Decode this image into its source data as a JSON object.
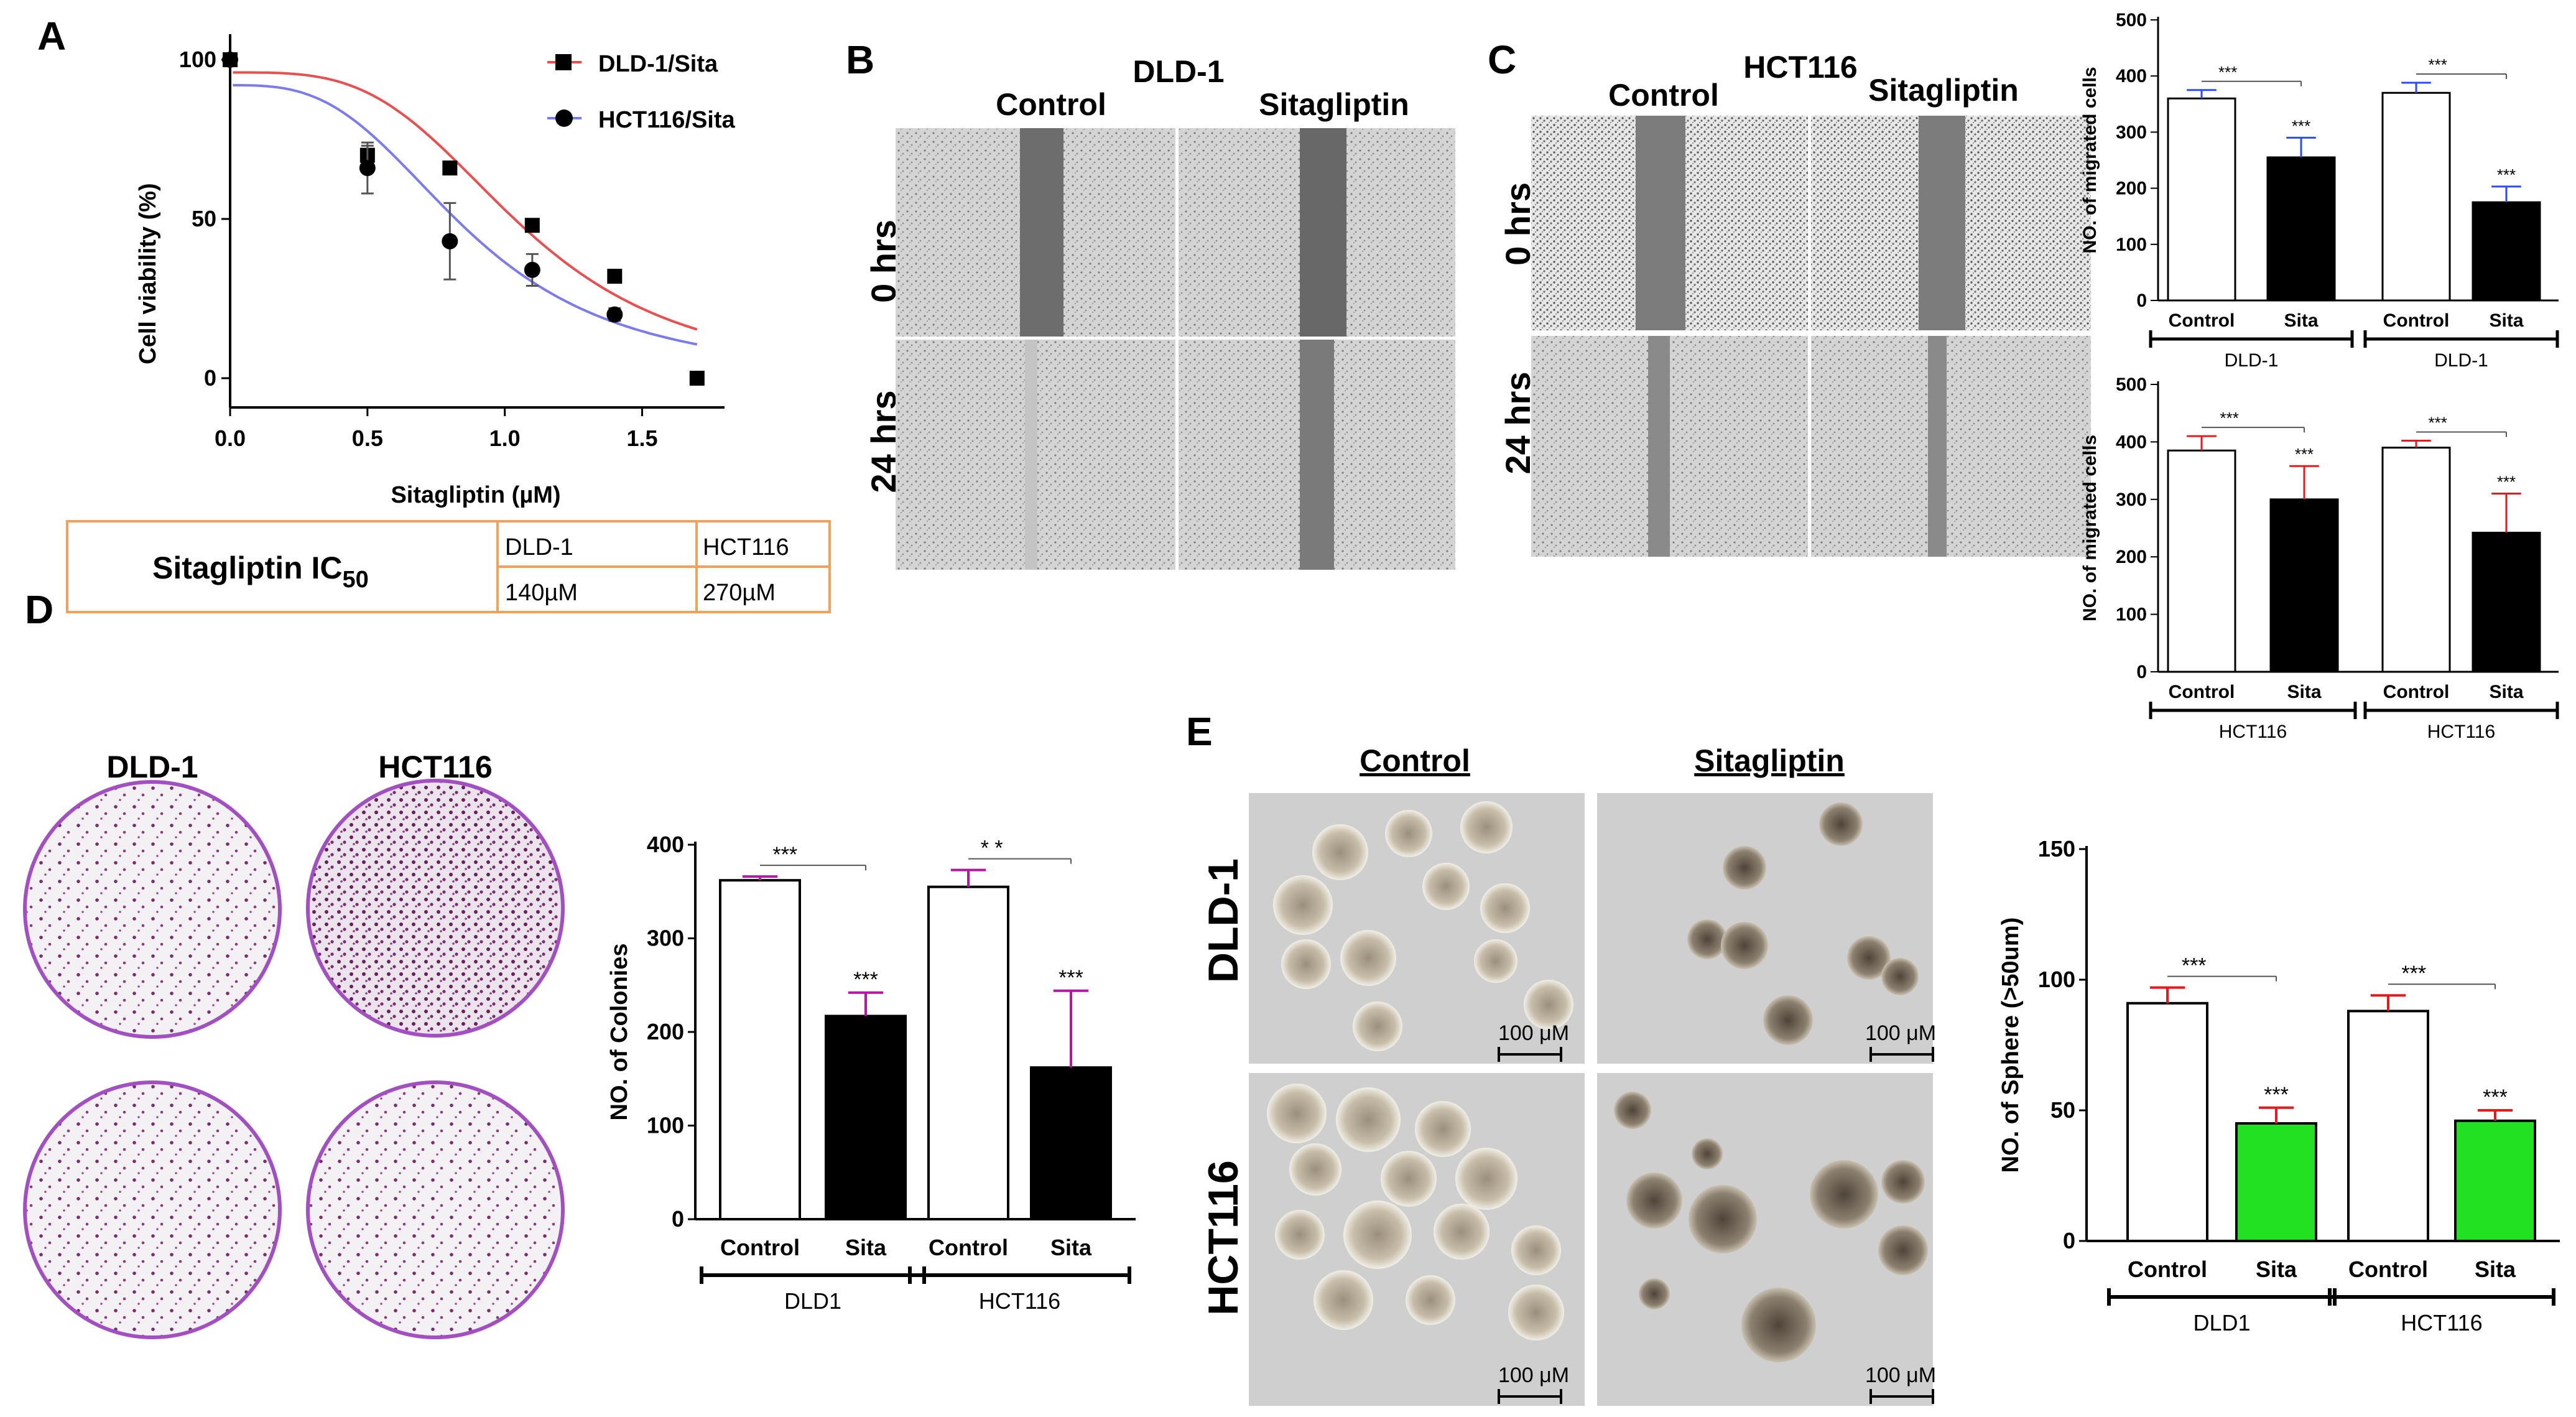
{
  "panels": {
    "A": "A",
    "B": "B",
    "C": "C",
    "D": "D",
    "E": "E"
  },
  "A": {
    "legend": [
      "DLD-1/Sita",
      "HCT116/Sita"
    ],
    "ylabel": "Cell viability (%)",
    "xlabel": "Sitagliptin (µM)",
    "yticks": [
      "0",
      "50",
      "100"
    ],
    "xticks": [
      "0.0",
      "0.5",
      "1.0",
      "1.5"
    ],
    "table": {
      "label": "Sitagliptin  IC",
      "label_sub": "50",
      "col1_head": "DLD-1",
      "col2_head": "HCT116",
      "col1_val": "140µM",
      "col2_val": "270µM"
    }
  },
  "B": {
    "title": "DLD-1",
    "col_control": "Control",
    "col_sita": "Sitagliptin",
    "row_0": "0 hrs",
    "row_24": "24 hrs"
  },
  "C": {
    "title": "HCT116",
    "col_control": "Control",
    "col_sita": "Sitagliptin",
    "row_0": "0 hrs",
    "row_24": "24 hrs"
  },
  "D": {
    "dld_label": "DLD-1",
    "hct_label": "HCT116"
  },
  "E": {
    "col_control": "Control",
    "col_sita": "Sitagliptin",
    "row_dld": "DLD-1",
    "row_hct": "HCT116",
    "scale": "100 μM"
  },
  "chart_data": [
    {
      "id": "A",
      "type": "scatter",
      "ylabel": "Cell viability (%)",
      "xlabel": "Sitagliptin (µM)",
      "xlim": [
        0,
        1.8
      ],
      "ylim": [
        0,
        100
      ],
      "series": [
        {
          "name": "DLD-1/Sita",
          "color": "#e8504f",
          "marker": "square",
          "x": [
            0.0,
            0.5,
            0.8,
            1.1,
            1.4,
            1.7
          ],
          "y": [
            100,
            70,
            66,
            48,
            32,
            0
          ],
          "err": [
            0,
            3,
            2,
            2,
            2,
            0
          ]
        },
        {
          "name": "HCT116/Sita",
          "color": "#7b7bef",
          "marker": "circle",
          "x": [
            0.0,
            0.5,
            0.8,
            1.1,
            1.4
          ],
          "y": [
            100,
            66,
            43,
            34,
            20
          ],
          "err": [
            0,
            8,
            12,
            5,
            2
          ]
        }
      ]
    },
    {
      "id": "C-top",
      "type": "bar",
      "ylabel": "NO. of migrated cells",
      "ylim": [
        0,
        500
      ],
      "yticks": [
        0,
        100,
        200,
        300,
        400,
        500
      ],
      "categories": [
        "Control",
        "Sita",
        "Control",
        "Sita"
      ],
      "groups": [
        "DLD-1",
        "DLD-1"
      ],
      "values": [
        360,
        255,
        370,
        175
      ],
      "errors": [
        15,
        35,
        18,
        28
      ],
      "colors": [
        "#ffffff",
        "#000000",
        "#ffffff",
        "#000000"
      ],
      "errcolor": "#2b4bff",
      "sig": [
        "***",
        "***",
        "***",
        "***"
      ]
    },
    {
      "id": "C-bottom",
      "type": "bar",
      "ylabel": "NO. of migrated cells",
      "ylim": [
        0,
        500
      ],
      "yticks": [
        0,
        100,
        200,
        300,
        400,
        500
      ],
      "categories": [
        "Control",
        "Sita",
        "Control",
        "Sita"
      ],
      "groups": [
        "HCT116",
        "HCT116"
      ],
      "values": [
        385,
        300,
        390,
        242
      ],
      "errors": [
        25,
        58,
        12,
        68
      ],
      "colors": [
        "#ffffff",
        "#000000",
        "#ffffff",
        "#000000"
      ],
      "errcolor": "#e41a1c",
      "sig": [
        "***",
        "***",
        "***",
        "***"
      ]
    },
    {
      "id": "D",
      "type": "bar",
      "ylabel": "NO. of Colonies",
      "ylim": [
        0,
        400
      ],
      "yticks": [
        0,
        100,
        200,
        300,
        400
      ],
      "categories": [
        "Control",
        "Sita",
        "Control",
        "Sita"
      ],
      "groups": [
        "DLD1",
        "HCT116"
      ],
      "values": [
        362,
        217,
        355,
        162
      ],
      "errors": [
        4,
        25,
        18,
        82
      ],
      "colors": [
        "#ffffff",
        "#000000",
        "#ffffff",
        "#000000"
      ],
      "errcolor": "#b5179e",
      "sig": [
        "***",
        "***",
        "* *",
        "***"
      ]
    },
    {
      "id": "E",
      "type": "bar",
      "ylabel": "NO. of Sphere (>50um)",
      "ylim": [
        0,
        150
      ],
      "yticks": [
        0,
        50,
        100,
        150
      ],
      "categories": [
        "Control",
        "Sita",
        "Control",
        "Sita"
      ],
      "groups": [
        "DLD1",
        "HCT116"
      ],
      "values": [
        91,
        45,
        88,
        46
      ],
      "errors": [
        6,
        6,
        6,
        4
      ],
      "colors": [
        "#ffffff",
        "#22e022",
        "#ffffff",
        "#22e022"
      ],
      "errcolor": "#e41a1c",
      "sig": [
        "***",
        "***",
        "***",
        "***"
      ]
    }
  ]
}
